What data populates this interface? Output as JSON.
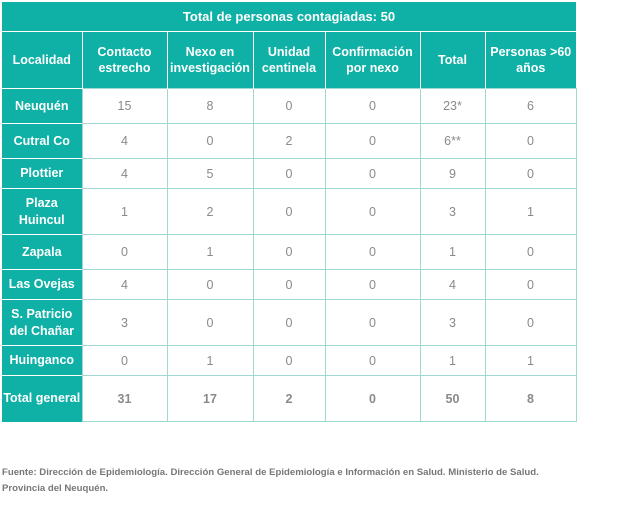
{
  "table": {
    "title": "Total de personas contagiadas: 50",
    "headers": [
      "Localidad",
      "Contacto estrecho",
      "Nexo en investigación",
      "Unidad centinela",
      "Confirmación por nexo",
      "Total",
      "Personas >60 años"
    ],
    "rows": [
      {
        "locality": "Neuquén",
        "values": [
          "15",
          "8",
          "0",
          "0",
          "23*",
          "6"
        ]
      },
      {
        "locality": "Cutral Co",
        "values": [
          "4",
          "0",
          "2",
          "0",
          "6**",
          "0"
        ]
      },
      {
        "locality": "Plottier",
        "values": [
          "4",
          "5",
          "0",
          "0",
          "9",
          "0"
        ]
      },
      {
        "locality": "Plaza Huincul",
        "values": [
          "1",
          "2",
          "0",
          "0",
          "3",
          "1"
        ]
      },
      {
        "locality": "Zapala",
        "values": [
          "0",
          "1",
          "0",
          "0",
          "1",
          "0"
        ]
      },
      {
        "locality": "Las Ovejas",
        "values": [
          "4",
          "0",
          "0",
          "0",
          "4",
          "0"
        ]
      },
      {
        "locality": "S. Patricio del Chañar",
        "values": [
          "3",
          "0",
          "0",
          "0",
          "3",
          "0"
        ]
      },
      {
        "locality": "Huinganco",
        "values": [
          "0",
          "1",
          "0",
          "0",
          "1",
          "1"
        ]
      }
    ],
    "total": {
      "locality": "Total general",
      "values": [
        "31",
        "17",
        "2",
        "0",
        "50",
        "8"
      ]
    }
  },
  "source": "Fuente: Dirección de Epidemiología. Dirección General de Epidemiología e Información en Salud. Ministerio de Salud. Provincia del Neuquén.",
  "colors": {
    "header_bg": "#0fb0a6",
    "cell_border": "#9fd7d2",
    "cell_text": "#8a8a8a"
  }
}
